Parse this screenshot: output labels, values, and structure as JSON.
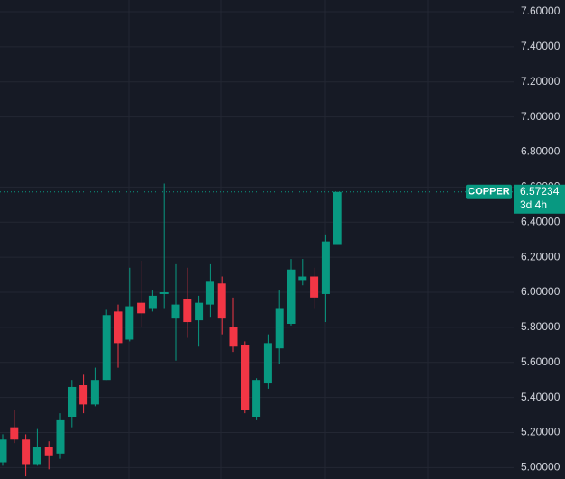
{
  "chart_data": {
    "type": "candlestick",
    "symbol": "COPPER",
    "countdown": "3d 4h",
    "last_price": 6.57234,
    "categories": [
      null,
      null,
      null,
      null,
      null,
      null,
      null,
      null,
      null,
      null,
      null,
      null,
      null,
      null,
      null,
      null,
      null,
      null,
      null,
      null,
      null,
      null,
      null,
      null,
      null,
      null,
      null,
      null,
      null,
      null
    ],
    "open": [
      5.03,
      5.23,
      5.16,
      5.02,
      5.12,
      5.08,
      5.29,
      5.47,
      5.36,
      5.5,
      5.89,
      5.73,
      5.94,
      5.91,
      5.99,
      5.85,
      5.96,
      5.84,
      5.93,
      6.05,
      5.8,
      5.7,
      5.29,
      5.48,
      5.68,
      5.82,
      6.07,
      6.09,
      5.99,
      6.27
    ],
    "high": [
      5.19,
      5.33,
      5.19,
      5.22,
      5.15,
      5.31,
      5.5,
      5.53,
      5.57,
      5.9,
      5.93,
      6.14,
      6.18,
      6.01,
      6.62,
      6.16,
      6.14,
      5.98,
      6.16,
      6.09,
      5.97,
      5.72,
      5.51,
      5.76,
      6.01,
      6.19,
      6.19,
      6.14,
      6.33,
      6.57234
    ],
    "low": [
      5.01,
      5.14,
      4.95,
      5.01,
      4.99,
      5.05,
      5.23,
      5.31,
      5.35,
      5.5,
      5.57,
      5.72,
      5.8,
      5.89,
      5.91,
      5.61,
      5.74,
      5.69,
      5.86,
      5.76,
      5.66,
      5.31,
      5.27,
      5.45,
      5.59,
      5.81,
      6.04,
      5.91,
      5.83,
      6.27
    ],
    "close": [
      5.16,
      5.16,
      5.02,
      5.12,
      5.07,
      5.27,
      5.46,
      5.36,
      5.5,
      5.87,
      5.71,
      5.92,
      5.88,
      5.98,
      6.0,
      5.93,
      5.83,
      5.94,
      6.06,
      5.85,
      5.69,
      5.33,
      5.5,
      5.71,
      5.91,
      6.13,
      6.09,
      5.97,
      6.29,
      6.57234
    ],
    "up_color": "#089981",
    "down_color": "#f23645",
    "ylim": [
      4.935,
      7.667
    ],
    "yticks": [
      {
        "value": 5.0,
        "label": "5.00000"
      },
      {
        "value": 5.2,
        "label": "5.20000"
      },
      {
        "value": 5.4,
        "label": "5.40000"
      },
      {
        "value": 5.6,
        "label": "5.60000"
      },
      {
        "value": 5.8,
        "label": "5.80000"
      },
      {
        "value": 6.0,
        "label": "6.00000"
      },
      {
        "value": 6.2,
        "label": "6.20000"
      },
      {
        "value": 6.4,
        "label": "6.40000"
      },
      {
        "value": 6.6,
        "label": "6.60000"
      },
      {
        "value": 6.8,
        "label": "6.80000"
      },
      {
        "value": 7.0,
        "label": "7.00000"
      },
      {
        "value": 7.2,
        "label": "7.20000"
      },
      {
        "value": 7.4,
        "label": "7.40000"
      },
      {
        "value": 7.6,
        "label": "7.60000"
      }
    ],
    "grid": true
  }
}
